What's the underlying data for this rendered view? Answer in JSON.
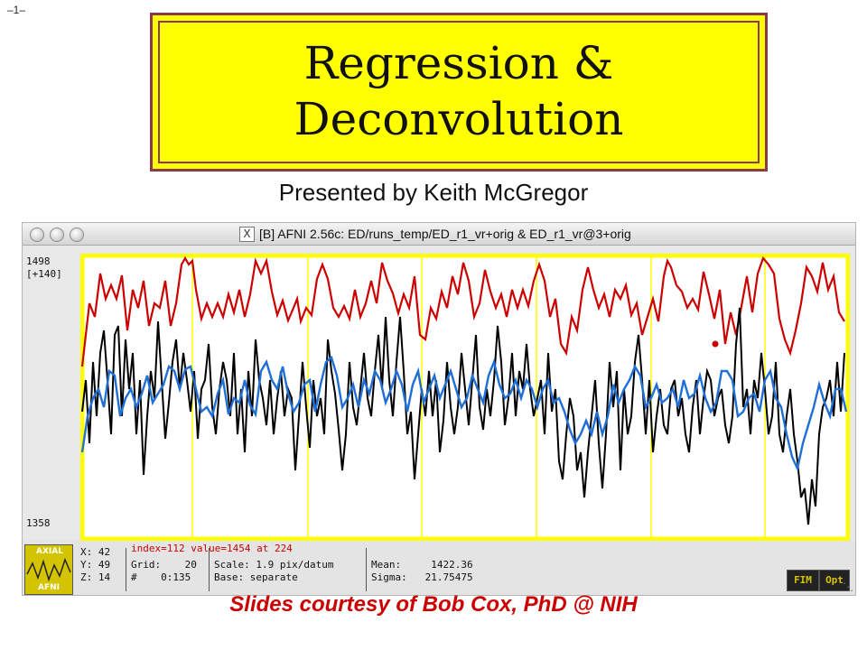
{
  "slide": {
    "page_number": "–1–",
    "title_line1": "Regression &",
    "title_line2": "Deconvolution",
    "presenter": "Presented by Keith McGregor",
    "credits": "Slides courtesy of Bob Cox, PhD @ NIH"
  },
  "window": {
    "title": "[B] AFNI 2.56c: ED/runs_temp/ED_r1_vr+orig & ED_r1_vr@3+orig",
    "close_glyph": "X"
  },
  "graph": {
    "y_top": "1498",
    "y_top_range": "[+140]",
    "y_bottom": "1358"
  },
  "status": {
    "thumb_top": "AXIAL",
    "thumb_bottom": "AFNI",
    "x_line": "X: 42",
    "y_line": "Y: 49",
    "z_line": "Z: 14",
    "index_line": "index=112 value=1454 at 224",
    "grid_line": "Grid:    20",
    "range_line": "#    0:135",
    "scale_line": "Scale: 1.9 pix/datum",
    "base_line": "Base: separate",
    "mean_line": "Mean:     1422.36",
    "sigma_line": "Sigma:   21.75475",
    "fim_button": "FIM",
    "opt_button": "Opt"
  },
  "colors": {
    "title_bg": "#ffff00",
    "title_border": "#8a3a4a",
    "graph_frame": "#ffff00",
    "series_red": "#cc0000",
    "series_black": "#000000",
    "series_blue": "#1f6fd6",
    "credits": "#cc0000"
  }
}
